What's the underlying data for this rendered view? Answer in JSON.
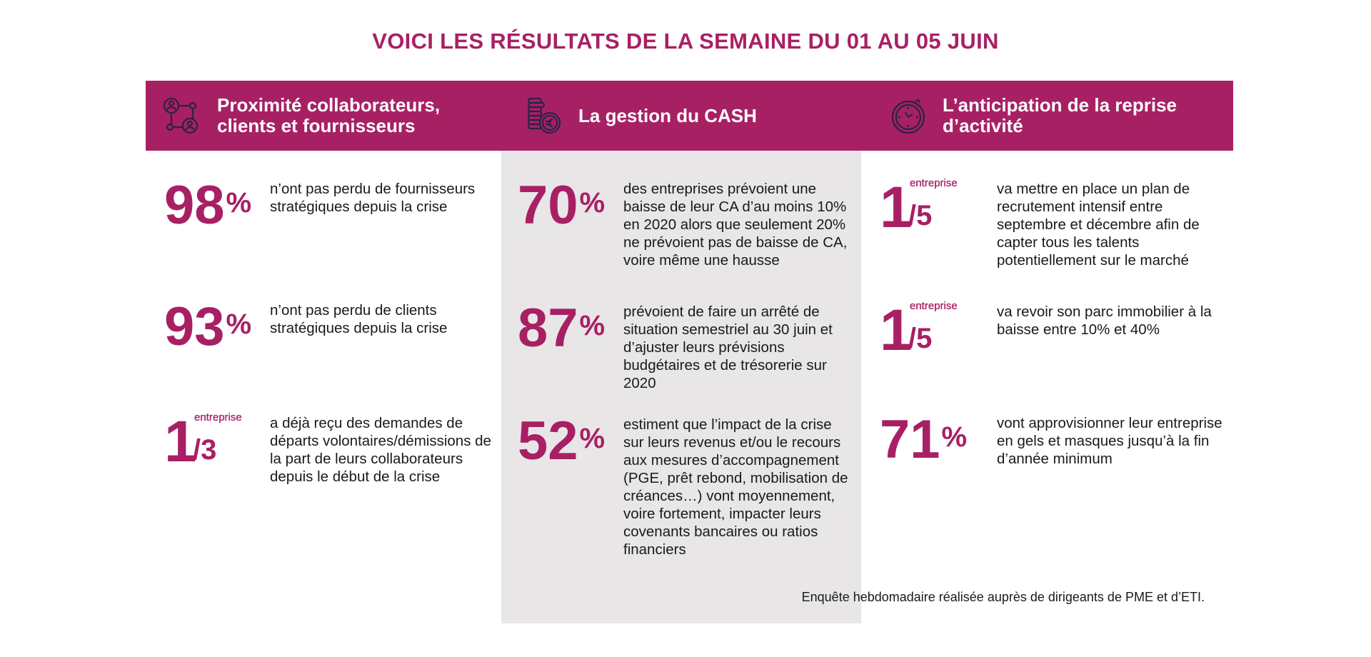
{
  "title": "VOICI LES RÉSULTATS DE LA SEMAINE DU 01 AU 05 JUIN",
  "accent_color": "#a82064",
  "columns": [
    {
      "icon": "network-people-icon",
      "heading": "Proximité collaborateurs, clients et fournisseurs",
      "stats": [
        {
          "value": "98",
          "suffix": "%",
          "text": "n’ont pas perdu de fournisseurs stratégiques depuis la crise"
        },
        {
          "value": "93",
          "suffix": "%",
          "text": "n’ont pas perdu de clients stratégiques depuis la crise"
        },
        {
          "value": "1",
          "unit": "entreprise",
          "denominator": "/3",
          "text": "a déjà reçu des demandes de départs volontaires/démissions de la part de leurs collaborateurs depuis le début de la crise"
        }
      ]
    },
    {
      "icon": "coins-euro-icon",
      "heading": "La gestion du CASH",
      "stats": [
        {
          "value": "70",
          "suffix": "%",
          "text": "des entreprises prévoient une baisse de leur CA d’au moins 10% en 2020 alors que seulement 20% ne prévoient pas de baisse de CA, voire même une hausse"
        },
        {
          "value": "87",
          "suffix": "%",
          "text": "prévoient de faire un arrêté de situation semestriel au 30 juin et d’ajuster leurs prévisions budgétaires et de trésorerie sur 2020"
        },
        {
          "value": "52",
          "suffix": "%",
          "text": "estiment que l’impact de la crise sur leurs revenus et/ou le recours aux mesures d’accompagnement (PGE, prêt rebond, mobilisation de créances…) vont moyennement, voire fortement, impacter leurs covenants bancaires ou ratios financiers"
        }
      ]
    },
    {
      "icon": "stopwatch-icon",
      "heading": "L’anticipation de la reprise d’activité",
      "stats": [
        {
          "value": "1",
          "unit": "entreprise",
          "denominator": "/5",
          "text": "va mettre en place un plan de recrutement intensif entre septembre et décembre afin de capter tous les talents potentiellement sur le marché"
        },
        {
          "value": "1",
          "unit": "entreprise",
          "denominator": "/5",
          "text": "va revoir son parc immobilier à la baisse entre 10% et 40%"
        },
        {
          "value": "71",
          "suffix": "%",
          "text": "vont approvisionner leur entreprise en gels et masques jusqu’à la fin d’année minimum"
        }
      ]
    }
  ],
  "footnote": "Enquête hebdomadaire réalisée auprès de dirigeants de PME et d’ETI."
}
